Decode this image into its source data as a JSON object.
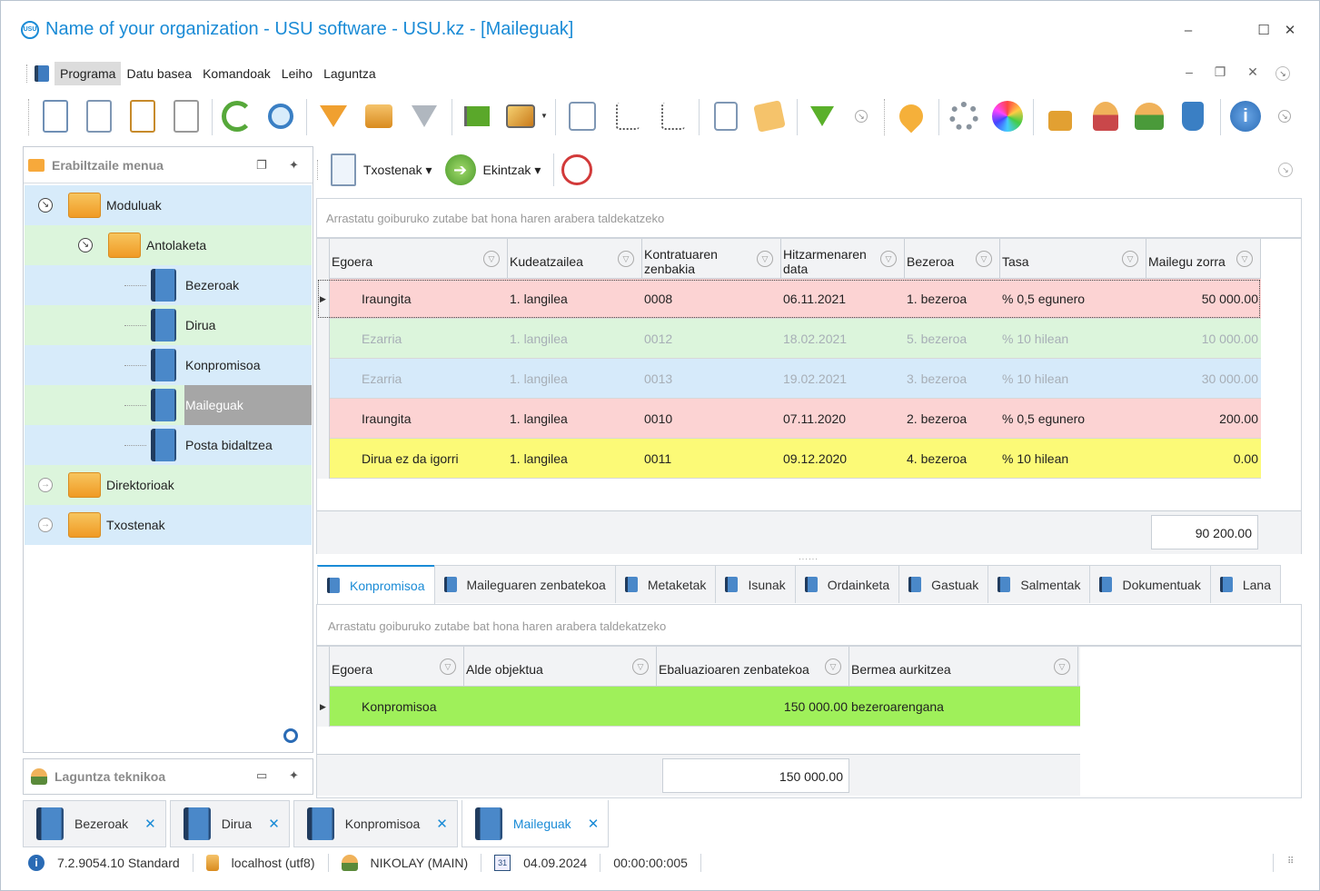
{
  "window": {
    "title": "Name of your organization - USU software - USU.kz - [Maileguak]",
    "logo_text": "USU"
  },
  "menu": {
    "items": [
      "Programa",
      "Datu basea",
      "Komandoak",
      "Leiho",
      "Laguntza"
    ],
    "active": "Programa"
  },
  "left_panel": {
    "title": "Erabiltzaile menua",
    "tree": [
      {
        "label": "Moduluak",
        "level": 0,
        "icon": "folder-open-icon",
        "expanded": true
      },
      {
        "label": "Antolaketa",
        "level": 1,
        "icon": "folder-open-icon",
        "expanded": true
      },
      {
        "label": "Bezeroak",
        "level": 2,
        "icon": "book-icon"
      },
      {
        "label": "Dirua",
        "level": 2,
        "icon": "book-icon"
      },
      {
        "label": "Konpromisoa",
        "level": 2,
        "icon": "book-icon"
      },
      {
        "label": "Maileguak",
        "level": 2,
        "icon": "book-icon",
        "selected": true
      },
      {
        "label": "Posta bidaltzea",
        "level": 2,
        "icon": "book-icon"
      },
      {
        "label": "Direktorioak",
        "level": 0,
        "icon": "folder-icon",
        "expanded": false
      },
      {
        "label": "Txostenak",
        "level": 0,
        "icon": "folder-icon",
        "expanded": false
      }
    ]
  },
  "support_panel": {
    "title": "Laguntza teknikoa"
  },
  "sub_toolbar": {
    "reports_label": "Txostenak",
    "actions_label": "Ekintzak"
  },
  "main_grid": {
    "group_hint": "Arrastatu goiburuko zutabe bat hona haren arabera taldekatzeko",
    "columns": [
      "Egoera",
      "Kudeatzailea",
      "Kontratuaren zenbakia",
      "Hitzarmenaren data",
      "Bezeroa",
      "Tasa",
      "Mailegu zorra"
    ],
    "rows": [
      {
        "status": "Iraungita",
        "manager": "1. langilea",
        "contract": "0008",
        "date": "06.11.2021",
        "client": "1. bezeroa",
        "rate": "% 0,5 egunero",
        "debt": "50 000.00",
        "color": "red"
      },
      {
        "status": "Ezarria",
        "manager": "1. langilea",
        "contract": "0012",
        "date": "18.02.2021",
        "client": "5. bezeroa",
        "rate": "% 10 hilean",
        "debt": "10 000.00",
        "color": "green"
      },
      {
        "status": "Ezarria",
        "manager": "1. langilea",
        "contract": "0013",
        "date": "19.02.2021",
        "client": "3. bezeroa",
        "rate": "% 10 hilean",
        "debt": "30 000.00",
        "color": "blue"
      },
      {
        "status": "Iraungita",
        "manager": "1. langilea",
        "contract": "0010",
        "date": "07.11.2020",
        "client": "2. bezeroa",
        "rate": "% 0,5 egunero",
        "debt": "200.00",
        "color": "red"
      },
      {
        "status": "Dirua ez da igorri",
        "manager": "1. langilea",
        "contract": "0011",
        "date": "09.12.2020",
        "client": "4. bezeroa",
        "rate": "% 10 hilean",
        "debt": "0.00",
        "color": "yellow"
      }
    ],
    "total": "90 200.00"
  },
  "detail_tabs": [
    "Konpromisoa",
    "Maileguaren zenbatekoa",
    "Metaketak",
    "Isunak",
    "Ordainketa",
    "Gastuak",
    "Salmentak",
    "Dokumentuak",
    "Lana"
  ],
  "detail_grid": {
    "group_hint": "Arrastatu goiburuko zutabe bat hona haren arabera taldekatzeko",
    "columns": [
      "Egoera",
      "Alde objektua",
      "Ebaluazioaren zenbatekoa",
      "Bermea aurkitzea"
    ],
    "rows": [
      {
        "status": "Konpromisoa",
        "object": "",
        "amount": "150 000.00",
        "guarantee": "bezeroarengana",
        "color": "#9ff05a"
      }
    ],
    "total": "150 000.00"
  },
  "doc_tabs": [
    "Bezeroak",
    "Dirua",
    "Konpromisoa",
    "Maileguak"
  ],
  "status_bar": {
    "version": "7.2.9054.10 Standard",
    "server": "localhost (utf8)",
    "user": "NIKOLAY (MAIN)",
    "calendar_day": "31",
    "date": "04.09.2024",
    "timer": "00:00:00:005"
  },
  "colors": {
    "accent": "#1a8bd6",
    "row_red": "#fcd3d3",
    "row_green": "#dcf5dc",
    "row_blue": "#d6eafa",
    "row_yellow": "#fcfa77",
    "row_lime": "#9ff05a"
  }
}
